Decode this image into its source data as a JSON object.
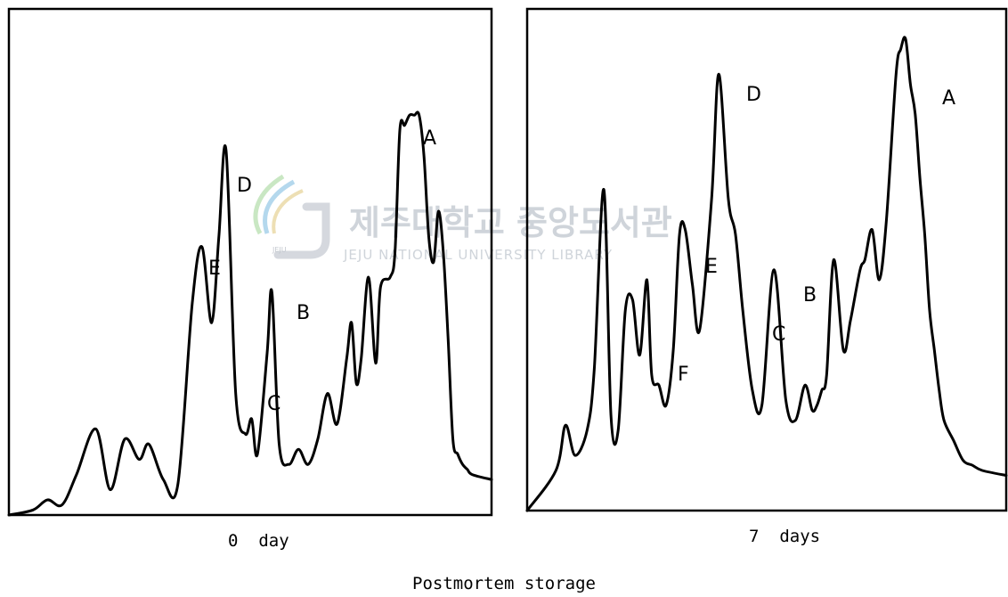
{
  "figure": {
    "caption": "Postmortem storage"
  },
  "watermark": {
    "korean": "제주대학교 중앙도서관",
    "english": "JEJU NATIONAL UNIVERSITY LIBRARY",
    "logo_text": "JEJU"
  },
  "chart_data": [
    {
      "type": "line",
      "panel_label": "0  day",
      "xlim": [
        0,
        100
      ],
      "ylim": [
        0,
        100
      ],
      "grid": false,
      "series": [
        {
          "x": [
            0,
            5,
            8,
            11,
            14,
            18,
            21,
            24,
            27,
            29,
            32,
            35,
            38,
            40,
            42,
            43.5,
            45,
            47,
            49,
            50.3,
            51.5,
            53.5,
            54.5,
            56,
            58,
            60,
            62,
            64,
            66,
            68,
            70,
            71,
            72,
            73,
            74.5,
            76,
            77,
            79,
            80,
            81,
            82,
            83,
            84,
            85,
            86,
            87,
            88,
            89,
            90,
            91,
            92,
            93,
            94,
            95,
            96,
            100
          ],
          "y": [
            0,
            1,
            3,
            2,
            8,
            17,
            5,
            15,
            11,
            14,
            7,
            6,
            42,
            53,
            38,
            55,
            72,
            24,
            16,
            19,
            12,
            32,
            44,
            14,
            10,
            13,
            10,
            15,
            24,
            18,
            31,
            38,
            26,
            31,
            47,
            30,
            45,
            47,
            52,
            76,
            77,
            79,
            79,
            79,
            71,
            55,
            50,
            60,
            52,
            35,
            15,
            12,
            10,
            9,
            8,
            7
          ]
        }
      ],
      "annotations": [
        "A",
        "B",
        "C",
        "D",
        "E"
      ]
    },
    {
      "type": "line",
      "panel_label": "7  days",
      "xlim": [
        0,
        100
      ],
      "ylim": [
        0,
        100
      ],
      "grid": false,
      "series": [
        {
          "x": [
            0,
            6,
            8,
            10,
            12.5,
            14,
            16,
            17.5,
            19,
            20.5,
            22,
            23.5,
            25,
            26,
            27.5,
            29,
            30.5,
            31.8,
            33,
            34.5,
            36,
            38.5,
            40,
            42,
            43.5,
            45,
            47,
            49,
            51.5,
            54,
            56,
            58,
            59.5,
            60.5,
            61.5,
            62.5,
            64,
            66,
            67.5,
            69.5,
            70.5,
            72,
            73.5,
            75,
            77,
            78,
            79,
            80,
            81,
            82,
            83,
            84,
            85,
            86,
            87,
            89,
            91,
            93,
            95,
            100
          ],
          "y": [
            0,
            8,
            17,
            11,
            16,
            28,
            64,
            19,
            16,
            40,
            42,
            31,
            46,
            27,
            25,
            21,
            32,
            55,
            56,
            45,
            36,
            62,
            87,
            62,
            55,
            40,
            24,
            21,
            48,
            22,
            18,
            25,
            20,
            21,
            24,
            27,
            50,
            32,
            38,
            48,
            50,
            56,
            46,
            58,
            87,
            92,
            94,
            85,
            79,
            66,
            55,
            40,
            32,
            24,
            18,
            14,
            10,
            9,
            8,
            7
          ]
        }
      ],
      "annotations": [
        "A",
        "B",
        "C",
        "D",
        "E",
        "F"
      ]
    }
  ]
}
